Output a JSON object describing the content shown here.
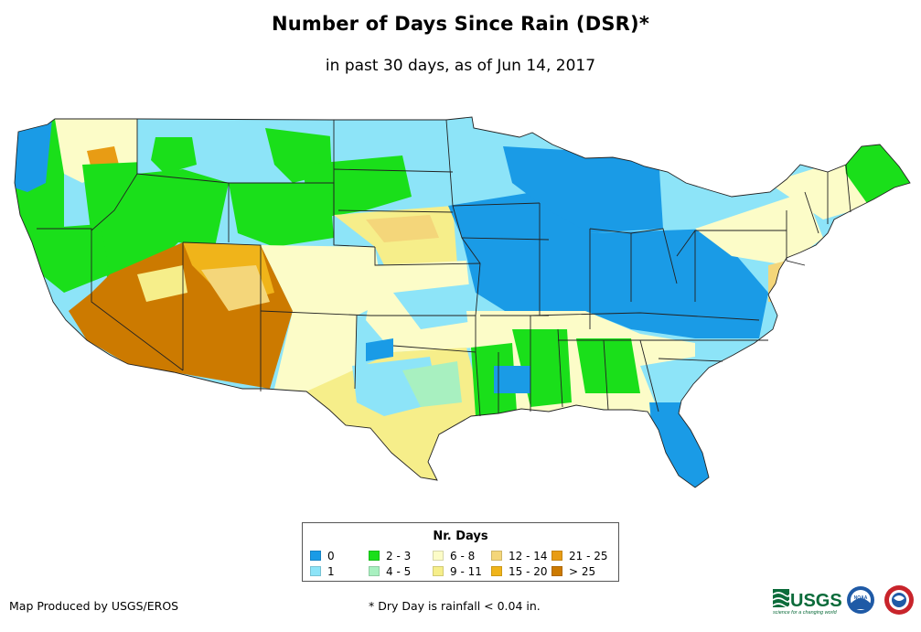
{
  "title": "Number of Days Since Rain (DSR)*",
  "subtitle": "in past 30 days, as of Jun 14, 2017",
  "legend": {
    "title": "Nr. Days",
    "items": [
      {
        "label": "0",
        "color": "#1a9be6"
      },
      {
        "label": "1",
        "color": "#8de4f8"
      },
      {
        "label": "2 - 3",
        "color": "#1adf1a"
      },
      {
        "label": "4 - 5",
        "color": "#a8f0c0"
      },
      {
        "label": "6 - 8",
        "color": "#fcfcc8"
      },
      {
        "label": "9 - 11",
        "color": "#f6ee8a"
      },
      {
        "label": "12 - 14",
        "color": "#f4d67a"
      },
      {
        "label": "15 - 20",
        "color": "#f0b41a"
      },
      {
        "label": "21 - 25",
        "color": "#e89c14"
      },
      {
        "label": "> 25",
        "color": "#cc7a00"
      }
    ]
  },
  "footer": {
    "credit": "Map Produced by USGS/EROS",
    "note": "* Dry Day is rainfall < 0.04 in."
  },
  "logos": {
    "usgs_text": "USGS",
    "usgs_tagline": "science for a changing world",
    "noaa_text": "NOAA",
    "nws_icon": "nws-logo-icon"
  }
}
